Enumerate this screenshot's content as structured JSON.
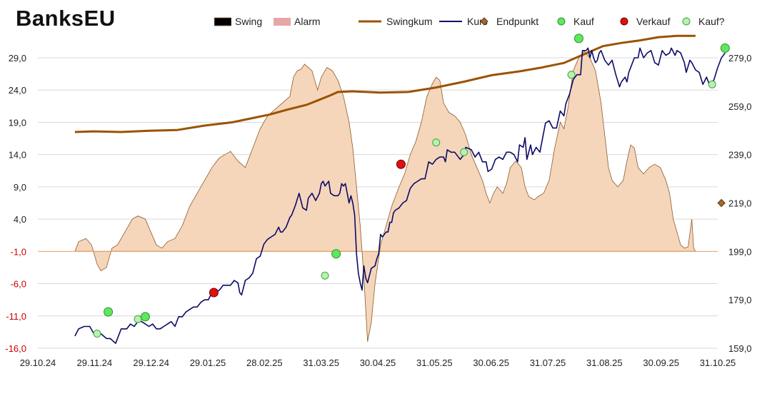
{
  "title": "BanksEU",
  "colors": {
    "swing_fill": "#f5d6bb",
    "swing_stroke": "#8b5a2b",
    "alarm": "#e8a5a5",
    "swingkum": "#9c5200",
    "kurs": "#0b0b66",
    "endpunkt": "#a06a2a",
    "kauf": "#5ee85e",
    "verkauf": "#e01010",
    "kauf_q": "#b9f0b0",
    "grid": "#d9d9d9",
    "negative_label": "#cc0000"
  },
  "legend": [
    {
      "key": "swing",
      "label": "Swing",
      "icon": "filled-rect"
    },
    {
      "key": "alarm",
      "label": "Alarm",
      "icon": "filled-rect"
    },
    {
      "key": "swingkum",
      "label": "Swingkum",
      "icon": "thick-line"
    },
    {
      "key": "kurs",
      "label": "Kurs",
      "icon": "line"
    },
    {
      "key": "endpunkt",
      "label": "Endpunkt",
      "icon": "diamond-marker"
    },
    {
      "key": "kauf",
      "label": "Kauf",
      "icon": "green-circle"
    },
    {
      "key": "verkauf",
      "label": "Verkauf",
      "icon": "red-circle"
    },
    {
      "key": "kauf_q",
      "label": "Kauf?",
      "icon": "open-green-circle"
    }
  ],
  "chart_data": {
    "type": "area+line",
    "x_ticks": [
      "29.10.24",
      "29.11.24",
      "29.12.24",
      "29.01.25",
      "28.02.25",
      "31.03.25",
      "30.04.25",
      "31.05.25",
      "30.06.25",
      "31.07.25",
      "31.08.25",
      "30.09.25",
      "31.10.25"
    ],
    "x_range": [
      0,
      367
    ],
    "y_left": {
      "min": -16,
      "max": 29,
      "ticks": [
        "29,0",
        "24,0",
        "19,0",
        "14,0",
        "9,0",
        "4,0",
        "-1,0",
        "-6,0",
        "-11,0",
        "-16,0"
      ],
      "tick_values": [
        29,
        24,
        19,
        14,
        9,
        4,
        -1,
        -6,
        -11,
        -16
      ]
    },
    "y_right": {
      "min": 159,
      "max": 279,
      "ticks": [
        "279,0",
        "259,0",
        "239,0",
        "219,0",
        "199,0",
        "179,0",
        "159,0"
      ],
      "tick_values": [
        279,
        259,
        239,
        219,
        199,
        179,
        159
      ]
    },
    "swing_baseline": -1,
    "swing": [
      [
        20,
        -1
      ],
      [
        22,
        0.5
      ],
      [
        26,
        1
      ],
      [
        29,
        0
      ],
      [
        32,
        -3
      ],
      [
        34,
        -4
      ],
      [
        37,
        -3.5
      ],
      [
        40,
        -0.5
      ],
      [
        43,
        0
      ],
      [
        47,
        2
      ],
      [
        51,
        4
      ],
      [
        54,
        4.5
      ],
      [
        58,
        4
      ],
      [
        61,
        2
      ],
      [
        64,
        0
      ],
      [
        67,
        -0.5
      ],
      [
        70,
        0.5
      ],
      [
        74,
        1
      ],
      [
        78,
        3
      ],
      [
        82,
        6
      ],
      [
        86,
        8
      ],
      [
        90,
        10
      ],
      [
        94,
        12
      ],
      [
        98,
        13.5
      ],
      [
        101,
        14
      ],
      [
        104,
        14.5
      ],
      [
        108,
        13
      ],
      [
        112,
        12
      ],
      [
        116,
        15
      ],
      [
        120,
        18
      ],
      [
        124,
        20
      ],
      [
        128,
        21
      ],
      [
        132,
        22
      ],
      [
        136,
        23
      ],
      [
        138,
        26
      ],
      [
        140,
        27
      ],
      [
        142,
        27.2
      ],
      [
        144,
        28
      ],
      [
        146,
        27.5
      ],
      [
        148,
        27
      ],
      [
        150,
        25
      ],
      [
        151,
        24
      ],
      [
        153,
        26
      ],
      [
        156,
        27.5
      ],
      [
        159,
        27
      ],
      [
        162,
        25.5
      ],
      [
        165,
        23
      ],
      [
        168,
        19
      ],
      [
        170,
        15
      ],
      [
        172,
        9
      ],
      [
        174,
        3
      ],
      [
        176,
        -5
      ],
      [
        177,
        -10
      ],
      [
        178,
        -15
      ],
      [
        180,
        -12
      ],
      [
        182,
        -6
      ],
      [
        185,
        0
      ],
      [
        188,
        3
      ],
      [
        191,
        6
      ],
      [
        195,
        9
      ],
      [
        198,
        11
      ],
      [
        201,
        14
      ],
      [
        204,
        16
      ],
      [
        207,
        19
      ],
      [
        210,
        23
      ],
      [
        213,
        25
      ],
      [
        215,
        26
      ],
      [
        217,
        25.5
      ],
      [
        219,
        22
      ],
      [
        222,
        20.5
      ],
      [
        225,
        20
      ],
      [
        228,
        19
      ],
      [
        231,
        17
      ],
      [
        234,
        14
      ],
      [
        237,
        12
      ],
      [
        240,
        10
      ],
      [
        242,
        8
      ],
      [
        244,
        6.5
      ],
      [
        246,
        8
      ],
      [
        248,
        9
      ],
      [
        251,
        8
      ],
      [
        253,
        9.5
      ],
      [
        255,
        12
      ],
      [
        258,
        13
      ],
      [
        261,
        12
      ],
      [
        263,
        9
      ],
      [
        265,
        7.5
      ],
      [
        268,
        7
      ],
      [
        270,
        7.5
      ],
      [
        273,
        8
      ],
      [
        276,
        10
      ],
      [
        279,
        15
      ],
      [
        282,
        19
      ],
      [
        284,
        18
      ],
      [
        286,
        21
      ],
      [
        289,
        27
      ],
      [
        292,
        29
      ],
      [
        295,
        30
      ],
      [
        298,
        29
      ],
      [
        301,
        27
      ],
      [
        304,
        22
      ],
      [
        306,
        17
      ],
      [
        308,
        12
      ],
      [
        310,
        10
      ],
      [
        313,
        9
      ],
      [
        316,
        10
      ],
      [
        318,
        13
      ],
      [
        320,
        15.5
      ],
      [
        322,
        15
      ],
      [
        324,
        12
      ],
      [
        327,
        11
      ],
      [
        330,
        12
      ],
      [
        333,
        12.5
      ],
      [
        336,
        12
      ],
      [
        339,
        10
      ],
      [
        341,
        8
      ],
      [
        343,
        4
      ],
      [
        345,
        2
      ],
      [
        347,
        0
      ],
      [
        349,
        -0.5
      ],
      [
        351,
        -0.3
      ],
      [
        353,
        4
      ],
      [
        354,
        -0.5
      ],
      [
        355,
        -1
      ]
    ],
    "swingkum": [
      [
        20,
        17.5
      ],
      [
        30,
        17.6
      ],
      [
        45,
        17.5
      ],
      [
        60,
        17.7
      ],
      [
        75,
        17.8
      ],
      [
        90,
        18.5
      ],
      [
        105,
        19
      ],
      [
        115,
        19.6
      ],
      [
        125,
        20.2
      ],
      [
        135,
        21
      ],
      [
        145,
        21.7
      ],
      [
        152,
        22.5
      ],
      [
        158,
        23.2
      ],
      [
        162,
        23.7
      ],
      [
        170,
        23.8
      ],
      [
        185,
        23.6
      ],
      [
        200,
        23.7
      ],
      [
        215,
        24.4
      ],
      [
        230,
        25.3
      ],
      [
        245,
        26.3
      ],
      [
        260,
        26.9
      ],
      [
        272,
        27.5
      ],
      [
        284,
        28.2
      ],
      [
        296,
        29.7
      ],
      [
        305,
        30.8
      ],
      [
        315,
        31.3
      ],
      [
        325,
        31.7
      ],
      [
        335,
        32.2
      ],
      [
        345,
        32.4
      ],
      [
        355,
        32.4
      ]
    ],
    "kurs": [
      [
        20,
        164
      ],
      [
        22,
        167
      ],
      [
        25,
        168
      ],
      [
        28,
        168
      ],
      [
        31,
        164
      ],
      [
        34,
        165
      ],
      [
        37,
        163
      ],
      [
        39,
        163
      ],
      [
        42,
        161
      ],
      [
        45,
        167
      ],
      [
        48,
        167
      ],
      [
        50,
        169
      ],
      [
        52,
        168
      ],
      [
        54,
        170
      ],
      [
        56,
        170
      ],
      [
        58,
        169
      ],
      [
        60,
        168
      ],
      [
        62,
        169
      ],
      [
        64,
        167
      ],
      [
        66,
        167
      ],
      [
        68,
        168
      ],
      [
        70,
        169
      ],
      [
        72,
        170
      ],
      [
        74,
        168
      ],
      [
        76,
        172
      ],
      [
        78,
        172
      ],
      [
        80,
        174
      ],
      [
        82,
        175
      ],
      [
        84,
        176
      ],
      [
        86,
        176
      ],
      [
        88,
        178
      ],
      [
        90,
        179
      ],
      [
        92,
        179
      ],
      [
        94,
        182
      ],
      [
        96,
        182
      ],
      [
        98,
        183
      ],
      [
        100,
        185
      ],
      [
        102,
        185
      ],
      [
        104,
        185
      ],
      [
        106,
        187
      ],
      [
        108,
        186
      ],
      [
        109,
        182
      ],
      [
        110,
        181
      ],
      [
        112,
        187
      ],
      [
        114,
        188
      ],
      [
        116,
        190
      ],
      [
        118,
        196
      ],
      [
        120,
        197
      ],
      [
        122,
        202
      ],
      [
        124,
        204
      ],
      [
        126,
        205
      ],
      [
        128,
        206
      ],
      [
        130,
        209
      ],
      [
        131,
        207
      ],
      [
        132,
        207
      ],
      [
        134,
        209
      ],
      [
        136,
        213
      ],
      [
        137,
        214
      ],
      [
        138,
        216
      ],
      [
        139,
        218
      ],
      [
        141,
        223
      ],
      [
        143,
        217
      ],
      [
        145,
        216
      ],
      [
        146,
        221
      ],
      [
        148,
        223
      ],
      [
        150,
        220
      ],
      [
        152,
        223
      ],
      [
        153,
        227
      ],
      [
        154,
        228
      ],
      [
        155,
        226
      ],
      [
        157,
        228
      ],
      [
        158,
        223
      ],
      [
        160,
        222
      ],
      [
        162,
        222
      ],
      [
        163,
        223
      ],
      [
        164,
        227
      ],
      [
        165,
        226
      ],
      [
        166,
        227
      ],
      [
        168,
        219
      ],
      [
        169,
        222
      ],
      [
        170,
        219
      ],
      [
        171,
        214
      ],
      [
        172,
        198
      ],
      [
        173,
        190
      ],
      [
        174,
        186
      ],
      [
        175,
        183
      ],
      [
        176,
        193
      ],
      [
        177,
        188
      ],
      [
        178,
        186
      ],
      [
        180,
        192
      ],
      [
        182,
        193
      ],
      [
        183,
        196
      ],
      [
        184,
        198
      ],
      [
        185,
        206
      ],
      [
        186,
        205
      ],
      [
        188,
        207
      ],
      [
        189,
        207
      ],
      [
        190,
        211
      ],
      [
        191,
        211
      ],
      [
        192,
        215
      ],
      [
        193,
        216
      ],
      [
        195,
        217
      ],
      [
        197,
        219
      ],
      [
        199,
        220
      ],
      [
        201,
        225
      ],
      [
        203,
        227
      ],
      [
        205,
        228
      ],
      [
        207,
        229
      ],
      [
        209,
        229
      ],
      [
        211,
        236
      ],
      [
        213,
        235
      ],
      [
        215,
        237
      ],
      [
        217,
        238
      ],
      [
        219,
        238
      ],
      [
        220,
        236
      ],
      [
        221,
        241
      ],
      [
        223,
        240
      ],
      [
        225,
        240
      ],
      [
        228,
        237
      ],
      [
        230,
        239
      ],
      [
        231,
        242
      ],
      [
        234,
        241
      ],
      [
        236,
        238
      ],
      [
        238,
        240
      ],
      [
        240,
        236
      ],
      [
        242,
        236
      ],
      [
        243,
        232
      ],
      [
        245,
        233
      ],
      [
        247,
        237
      ],
      [
        249,
        238
      ],
      [
        251,
        237
      ],
      [
        253,
        240
      ],
      [
        255,
        240
      ],
      [
        257,
        239
      ],
      [
        259,
        236
      ],
      [
        260,
        243
      ],
      [
        262,
        242
      ],
      [
        263,
        246
      ],
      [
        264,
        237
      ],
      [
        266,
        243
      ],
      [
        267,
        239
      ],
      [
        269,
        242
      ],
      [
        271,
        240
      ],
      [
        274,
        252
      ],
      [
        276,
        253
      ],
      [
        278,
        250
      ],
      [
        280,
        250
      ],
      [
        282,
        257
      ],
      [
        284,
        255
      ],
      [
        285,
        260
      ],
      [
        287,
        264
      ],
      [
        289,
        270
      ],
      [
        291,
        272
      ],
      [
        293,
        272
      ],
      [
        294,
        282
      ],
      [
        296,
        282
      ],
      [
        297,
        283
      ],
      [
        298,
        279
      ],
      [
        299,
        282
      ],
      [
        300,
        279
      ],
      [
        301,
        277
      ],
      [
        302,
        278
      ],
      [
        303,
        281
      ],
      [
        304,
        282
      ],
      [
        306,
        278
      ],
      [
        307,
        277
      ],
      [
        308,
        276
      ],
      [
        310,
        278
      ],
      [
        312,
        272
      ],
      [
        314,
        267
      ],
      [
        315,
        269
      ],
      [
        317,
        271
      ],
      [
        318,
        269
      ],
      [
        319,
        273
      ],
      [
        321,
        277
      ],
      [
        322,
        279
      ],
      [
        324,
        279
      ],
      [
        325,
        283
      ],
      [
        327,
        279
      ],
      [
        329,
        281
      ],
      [
        331,
        282
      ],
      [
        333,
        277
      ],
      [
        335,
        276
      ],
      [
        337,
        282
      ],
      [
        339,
        280
      ],
      [
        341,
        281
      ],
      [
        342,
        283
      ],
      [
        344,
        280
      ],
      [
        345,
        282
      ],
      [
        347,
        281
      ],
      [
        349,
        277
      ],
      [
        350,
        273
      ],
      [
        352,
        278
      ],
      [
        353,
        277
      ],
      [
        355,
        274
      ],
      [
        357,
        273
      ],
      [
        359,
        268
      ],
      [
        361,
        271
      ],
      [
        363,
        267
      ],
      [
        365,
        270
      ],
      [
        367,
        275
      ],
      [
        369,
        279
      ],
      [
        371,
        281
      ]
    ],
    "endpunkt": {
      "x": 369,
      "y": 219
    },
    "kauf": [
      [
        38,
        174
      ],
      [
        58,
        172
      ],
      [
        161,
        198
      ],
      [
        292,
        287
      ],
      [
        371,
        283
      ]
    ],
    "verkauf": [
      [
        95,
        182
      ],
      [
        196,
        235
      ]
    ],
    "kauf_q": [
      [
        32,
        165
      ],
      [
        54,
        171
      ],
      [
        155,
        189
      ],
      [
        215,
        244
      ],
      [
        230,
        240
      ],
      [
        288,
        272
      ],
      [
        364,
        268
      ]
    ]
  }
}
